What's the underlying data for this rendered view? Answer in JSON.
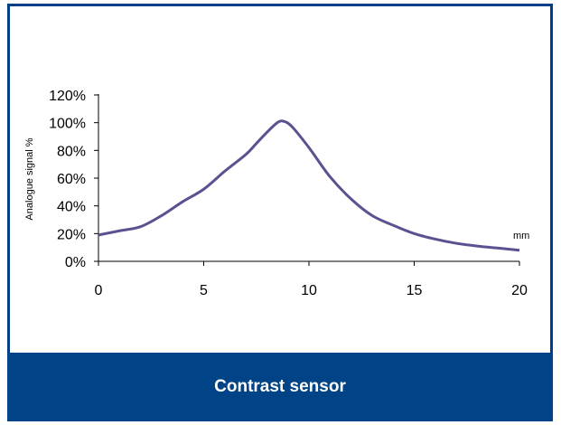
{
  "caption": "Contrast sensor",
  "colors": {
    "frame": "#003f87",
    "caption_bg": "#004387",
    "caption_text": "#ffffff",
    "curve": "#5a5290"
  },
  "chart_data": {
    "type": "line",
    "title": "",
    "xlabel": "",
    "ylabel": "Analogue signal %",
    "x_unit_annotation": "mm",
    "xlim": [
      0,
      20
    ],
    "ylim": [
      0,
      120
    ],
    "x_ticks": [
      0,
      5,
      10,
      15,
      20
    ],
    "x_tick_labels": [
      "0",
      "5",
      "10",
      "15",
      "20"
    ],
    "y_ticks": [
      0,
      20,
      40,
      60,
      80,
      100,
      120
    ],
    "y_tick_labels": [
      "0%",
      "20%",
      "40%",
      "60%",
      "80%",
      "100%",
      "120%"
    ],
    "grid": false,
    "legend": "none",
    "series": [
      {
        "x": [
          0,
          1,
          2,
          3,
          4,
          5,
          6,
          7,
          7.5,
          8,
          8.5,
          8.8,
          9.2,
          10,
          11,
          12,
          13,
          14,
          15,
          16,
          17,
          18,
          19,
          20
        ],
        "y": [
          19,
          22,
          25,
          33,
          43,
          52,
          65,
          77,
          85,
          93,
          100,
          101,
          97,
          82,
          61,
          45,
          33,
          26,
          20,
          16,
          13,
          11,
          9.5,
          8
        ]
      }
    ]
  }
}
